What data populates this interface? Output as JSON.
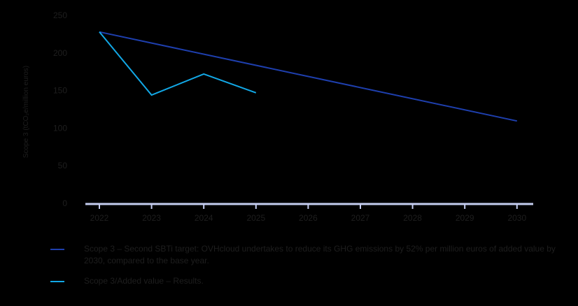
{
  "chart_data": {
    "type": "line",
    "title": "",
    "xlabel": "",
    "ylabel": "Scope 3 (tCO₂e/million euros)",
    "x": [
      "2022",
      "2023",
      "2024",
      "2025",
      "2026",
      "2027",
      "2028",
      "2029",
      "2030"
    ],
    "yticks": [
      0,
      50,
      100,
      150,
      200,
      250
    ],
    "ylim": [
      0,
      250
    ],
    "grid": false,
    "legend_position": "bottom",
    "series": [
      {
        "name": "Scope 3 – Second SBTi target: OVHcloud undertakes to reduce its GHG emissions by 52% per million euros of added value by 2030, compared to the base year.",
        "color": "#1e3fae",
        "points": [
          [
            "2022",
            228
          ],
          [
            "2030",
            109.5
          ]
        ]
      },
      {
        "name": "Scope 3/Added value – Results.",
        "color": "#12a8e6",
        "points": [
          [
            "2022",
            228
          ],
          [
            "2023",
            144
          ],
          [
            "2024",
            172
          ],
          [
            "2025",
            147
          ]
        ]
      }
    ]
  },
  "axis": {
    "y_title": "Scope 3 (tCO₂e/million euros)",
    "y_ticks": [
      "250",
      "200",
      "150",
      "100",
      "50",
      "0"
    ],
    "x_ticks": [
      "2022",
      "2023",
      "2024",
      "2025",
      "2026",
      "2027",
      "2028",
      "2029",
      "2030"
    ],
    "axis_color": "#c5cdf0"
  },
  "legend": {
    "items": [
      {
        "label": "Scope 3 – Second SBTi target: OVHcloud undertakes to reduce its GHG emissions by 52% per million euros of added value by 2030, compared to the base year.",
        "color": "#1e3fae"
      },
      {
        "label": "Scope 3/Added value – Results.",
        "color": "#12a8e6"
      }
    ]
  }
}
